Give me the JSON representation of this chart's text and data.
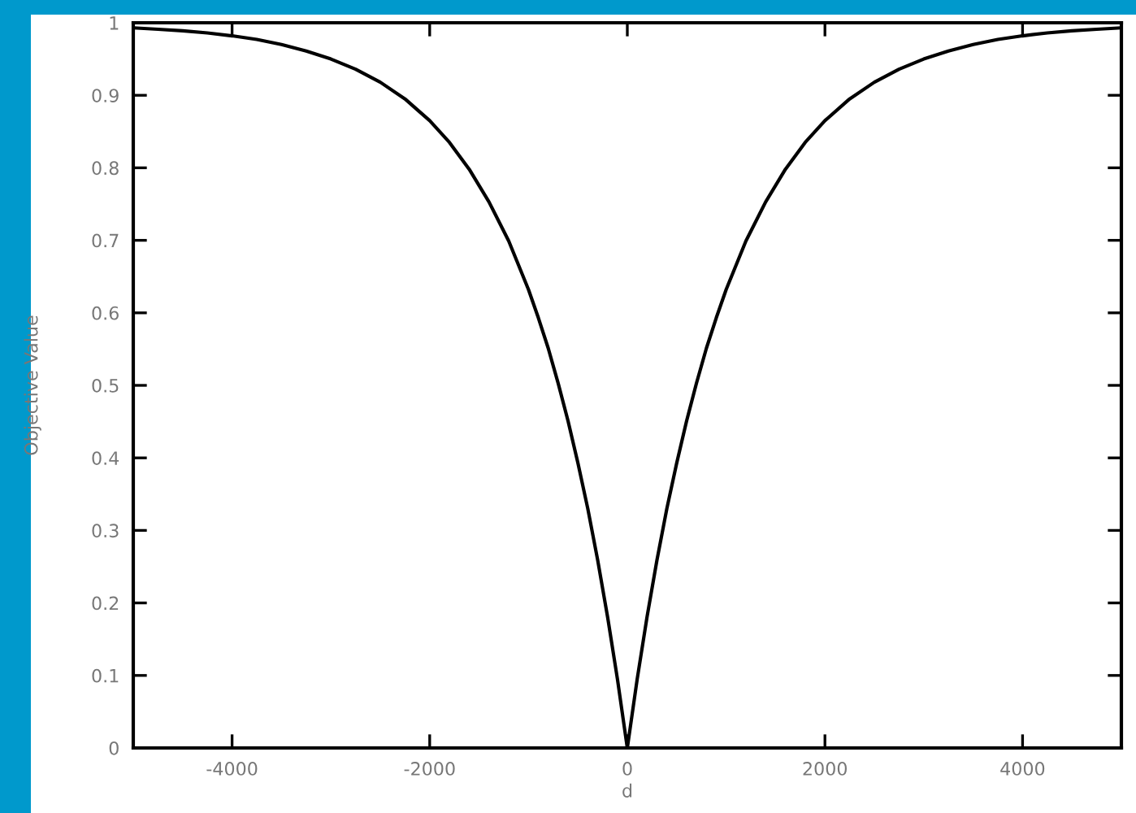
{
  "chart_data": {
    "type": "line",
    "xlabel": "d",
    "ylabel": "Objective Value",
    "x": [
      -5000,
      -4750,
      -4500,
      -4250,
      -4000,
      -3750,
      -3500,
      -3250,
      -3000,
      -2750,
      -2500,
      -2250,
      -2000,
      -1800,
      -1600,
      -1400,
      -1200,
      -1000,
      -900,
      -800,
      -700,
      -600,
      -500,
      -400,
      -300,
      -200,
      -100,
      0,
      100,
      200,
      300,
      400,
      500,
      600,
      700,
      800,
      900,
      1000,
      1200,
      1400,
      1600,
      1800,
      2000,
      2250,
      2500,
      2750,
      3000,
      3250,
      3500,
      3750,
      4000,
      4250,
      4500,
      4750,
      5000
    ],
    "series": [
      {
        "color": "#000000",
        "values": [
          0.993,
          0.991,
          0.989,
          0.986,
          0.982,
          0.977,
          0.97,
          0.961,
          0.95,
          0.936,
          0.918,
          0.895,
          0.865,
          0.835,
          0.798,
          0.753,
          0.699,
          0.632,
          0.593,
          0.551,
          0.503,
          0.451,
          0.393,
          0.33,
          0.259,
          0.181,
          0.095,
          0,
          0.095,
          0.181,
          0.259,
          0.33,
          0.393,
          0.451,
          0.503,
          0.551,
          0.593,
          0.632,
          0.699,
          0.753,
          0.798,
          0.835,
          0.865,
          0.895,
          0.918,
          0.936,
          0.95,
          0.961,
          0.97,
          0.977,
          0.982,
          0.986,
          0.989,
          0.991,
          0.993
        ]
      }
    ],
    "xlim": [
      -5000,
      5000
    ],
    "ylim": [
      0,
      1
    ],
    "xticks": [
      -4000,
      -2000,
      0,
      2000,
      4000
    ],
    "yticks": [
      0,
      0.1,
      0.2,
      0.3,
      0.4,
      0.5,
      0.6,
      0.7,
      0.8,
      0.9,
      1
    ],
    "line_style": "solid"
  }
}
